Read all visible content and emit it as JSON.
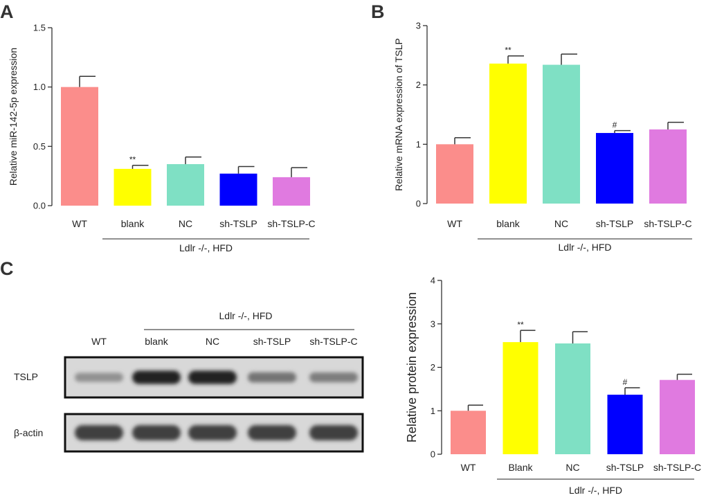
{
  "panels": {
    "a": {
      "label": "A"
    },
    "b": {
      "label": "B"
    },
    "c": {
      "label": "C"
    }
  },
  "colors": {
    "WT": "#fb8d8b",
    "blank": "#ffff00",
    "NC": "#7fe0c4",
    "sh-TSLP": "#0000ff",
    "sh-TSLP-C": "#e07ae0",
    "axis": "#222222"
  },
  "chart_data": [
    {
      "type": "bar",
      "panel": "A",
      "categories": [
        "WT",
        "blank",
        "NC",
        "sh-TSLP",
        "sh-TSLP-C"
      ],
      "values": [
        1.0,
        0.31,
        0.35,
        0.27,
        0.24
      ],
      "errors": [
        0.09,
        0.03,
        0.06,
        0.06,
        0.08
      ],
      "annotations": [
        "",
        "**",
        "",
        "",
        ""
      ],
      "ylabel": "Relative miR-142-5p expression",
      "ylim": [
        0,
        1.5
      ],
      "yticks": [
        0.0,
        0.5,
        1.0,
        1.5
      ],
      "ytick_labels": [
        "0.0",
        "0.5",
        "1.0",
        "1.5"
      ],
      "group_label": "Ldlr -/-, HFD"
    },
    {
      "type": "bar",
      "panel": "B",
      "categories": [
        "WT",
        "blank",
        "NC",
        "sh-TSLP",
        "sh-TSLP-C"
      ],
      "values": [
        1.0,
        2.36,
        2.34,
        1.19,
        1.25
      ],
      "errors": [
        0.11,
        0.13,
        0.18,
        0.04,
        0.12
      ],
      "annotations": [
        "",
        "**",
        "",
        "#",
        ""
      ],
      "ylabel": "Relative mRNA expression of TSLP",
      "ylim": [
        0,
        3
      ],
      "yticks": [
        0,
        1,
        2,
        3
      ],
      "ytick_labels": [
        "0",
        "1",
        "2",
        "3"
      ],
      "group_label": "Ldlr -/-, HFD"
    },
    {
      "type": "bar",
      "panel": "C",
      "categories": [
        "WT",
        "Blank",
        "NC",
        "sh-TSLP",
        "sh-TSLP-C"
      ],
      "values": [
        1.0,
        2.58,
        2.55,
        1.37,
        1.71
      ],
      "errors": [
        0.13,
        0.27,
        0.27,
        0.16,
        0.13
      ],
      "annotations": [
        "",
        "**",
        "",
        "#",
        ""
      ],
      "ylabel": "Relative protein expression",
      "ylim": [
        0,
        4
      ],
      "yticks": [
        0,
        1,
        2,
        3,
        4
      ],
      "ytick_labels": [
        "0",
        "1",
        "2",
        "3",
        "4"
      ],
      "group_label": "Ldlr -/-, HFD"
    }
  ],
  "blot": {
    "group_label": "Ldlr -/-, HFD",
    "lanes": [
      "WT",
      "blank",
      "NC",
      "sh-TSLP",
      "sh-TSLP-C"
    ],
    "rows": [
      {
        "label": "TSLP",
        "intensity": [
          0.45,
          1.0,
          1.0,
          0.6,
          0.55
        ]
      },
      {
        "label": "β-actin",
        "intensity": [
          0.85,
          0.85,
          0.85,
          0.85,
          0.85
        ]
      }
    ]
  }
}
